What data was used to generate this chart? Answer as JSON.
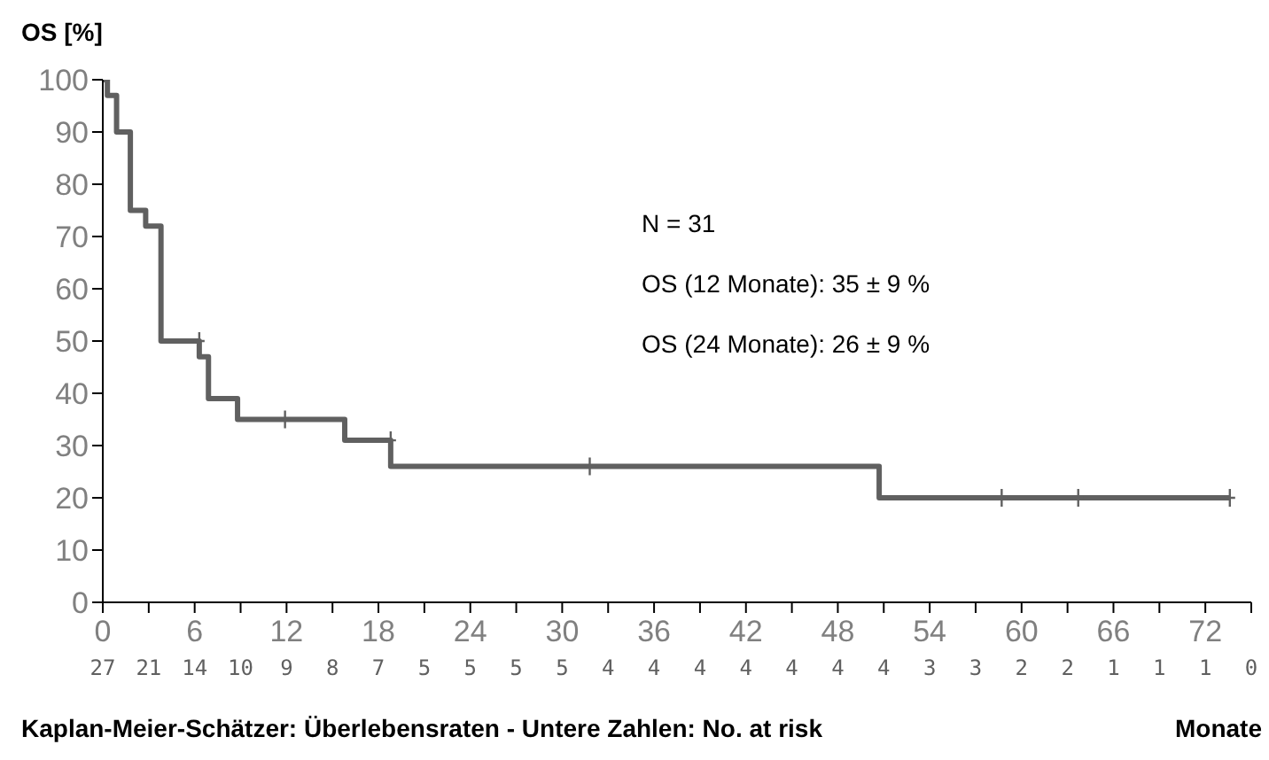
{
  "chart_data": {
    "type": "step",
    "ylabel": "OS [%]",
    "xlabel": "Monate",
    "xlim": [
      0,
      75
    ],
    "xticks": [
      0,
      {
        "value": 3,
        "label": null
      },
      6,
      {
        "value": 9,
        "label": null
      },
      12,
      {
        "value": 15,
        "label": null
      },
      18,
      {
        "value": 21,
        "label": null
      },
      24,
      {
        "value": 27,
        "label": null
      },
      30,
      {
        "value": 33,
        "label": null
      },
      36,
      {
        "value": 39,
        "label": null
      },
      42,
      {
        "value": 45,
        "label": null
      },
      48,
      {
        "value": 51,
        "label": null
      },
      54,
      {
        "value": 57,
        "label": null
      },
      60,
      {
        "value": 63,
        "label": null
      },
      66,
      {
        "value": 69,
        "label": null
      },
      72,
      {
        "value": 75,
        "label": null
      }
    ],
    "ylim": [
      0,
      100
    ],
    "yticks": [
      0,
      10,
      20,
      30,
      40,
      50,
      60,
      70,
      80,
      90,
      100
    ],
    "grid": false,
    "series": [
      {
        "color": "#606060",
        "line_style": "solid",
        "marker": "none",
        "x": [
          0,
          0.3,
          0.9,
          1.8,
          2.8,
          3.8,
          6.3,
          6.9,
          8.8,
          15.8,
          18.8,
          50.7,
          73.6
        ],
        "values": [
          100,
          97,
          90,
          75,
          72,
          50,
          47,
          39,
          35,
          31,
          26,
          20,
          20
        ]
      },
      {
        "type": "scatter",
        "color": "#606060",
        "marker": "cross",
        "x": [
          6.3,
          11.9,
          18.8,
          31.8,
          58.7,
          63.7,
          73.6
        ],
        "values": [
          50,
          35,
          31,
          26,
          20,
          20,
          20
        ]
      }
    ],
    "annotations": [
      "N = 31",
      "OS (12 Monate): 35 ± 9 %",
      "OS (24 Monate): 26 ± 9 %",
      "Kaplan-Meier-Schätzer: Überlebensraten  -  Untere Zahlen: No. at risk",
      "27",
      "21",
      "14",
      "10",
      "9",
      "8",
      "7",
      "5",
      "5",
      "5",
      "5",
      "4",
      "4",
      "4",
      "4",
      "4",
      "4",
      "4",
      "3",
      "3",
      "2",
      "2",
      "1",
      "1",
      "1",
      "0"
    ]
  }
}
